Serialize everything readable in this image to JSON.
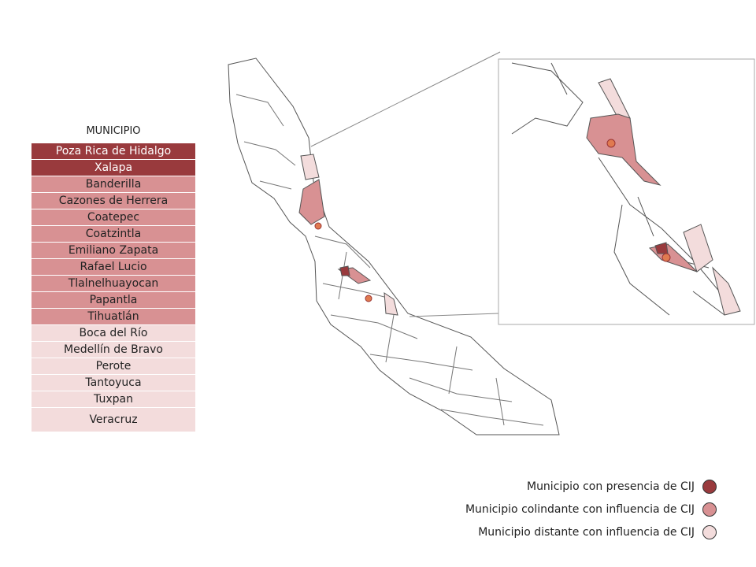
{
  "table": {
    "header": "MUNICIPIO",
    "rows": [
      {
        "name": "Poza Rica de Hidalgo",
        "color": "#993a3d"
      },
      {
        "name": "Xalapa",
        "color": "#993a3d"
      },
      {
        "name": "Banderilla",
        "color": "#d89193"
      },
      {
        "name": "Cazones de Herrera",
        "color": "#d89193"
      },
      {
        "name": "Coatepec",
        "color": "#d89193"
      },
      {
        "name": "Coatzintla",
        "color": "#d89193"
      },
      {
        "name": "Emiliano Zapata",
        "color": "#d89193"
      },
      {
        "name": "Rafael Lucio",
        "color": "#d89193"
      },
      {
        "name": "Tlalnelhuayocan",
        "color": "#d89193"
      },
      {
        "name": "Papantla",
        "color": "#d89193"
      },
      {
        "name": "Tihuatlán",
        "color": "#d89193"
      },
      {
        "name": "Boca del Río",
        "color": "#f3dcdc"
      },
      {
        "name": "Medellín de Bravo",
        "color": "#f3dcdc"
      },
      {
        "name": "Perote",
        "color": "#f3dcdc"
      },
      {
        "name": "Tantoyuca",
        "color": "#f3dcdc"
      },
      {
        "name": "Tuxpan",
        "color": "#f3dcdc"
      },
      {
        "name": "Veracruz",
        "color": "#f3dcdc"
      }
    ]
  },
  "legend": [
    {
      "label": "Municipio con presencia de CIJ",
      "color": "#993a3d"
    },
    {
      "label": "Municipio colindante con influencia de CIJ",
      "color": "#d89193"
    },
    {
      "label": "Municipio distante con influencia de CIJ",
      "color": "#f3dcdc"
    }
  ]
}
